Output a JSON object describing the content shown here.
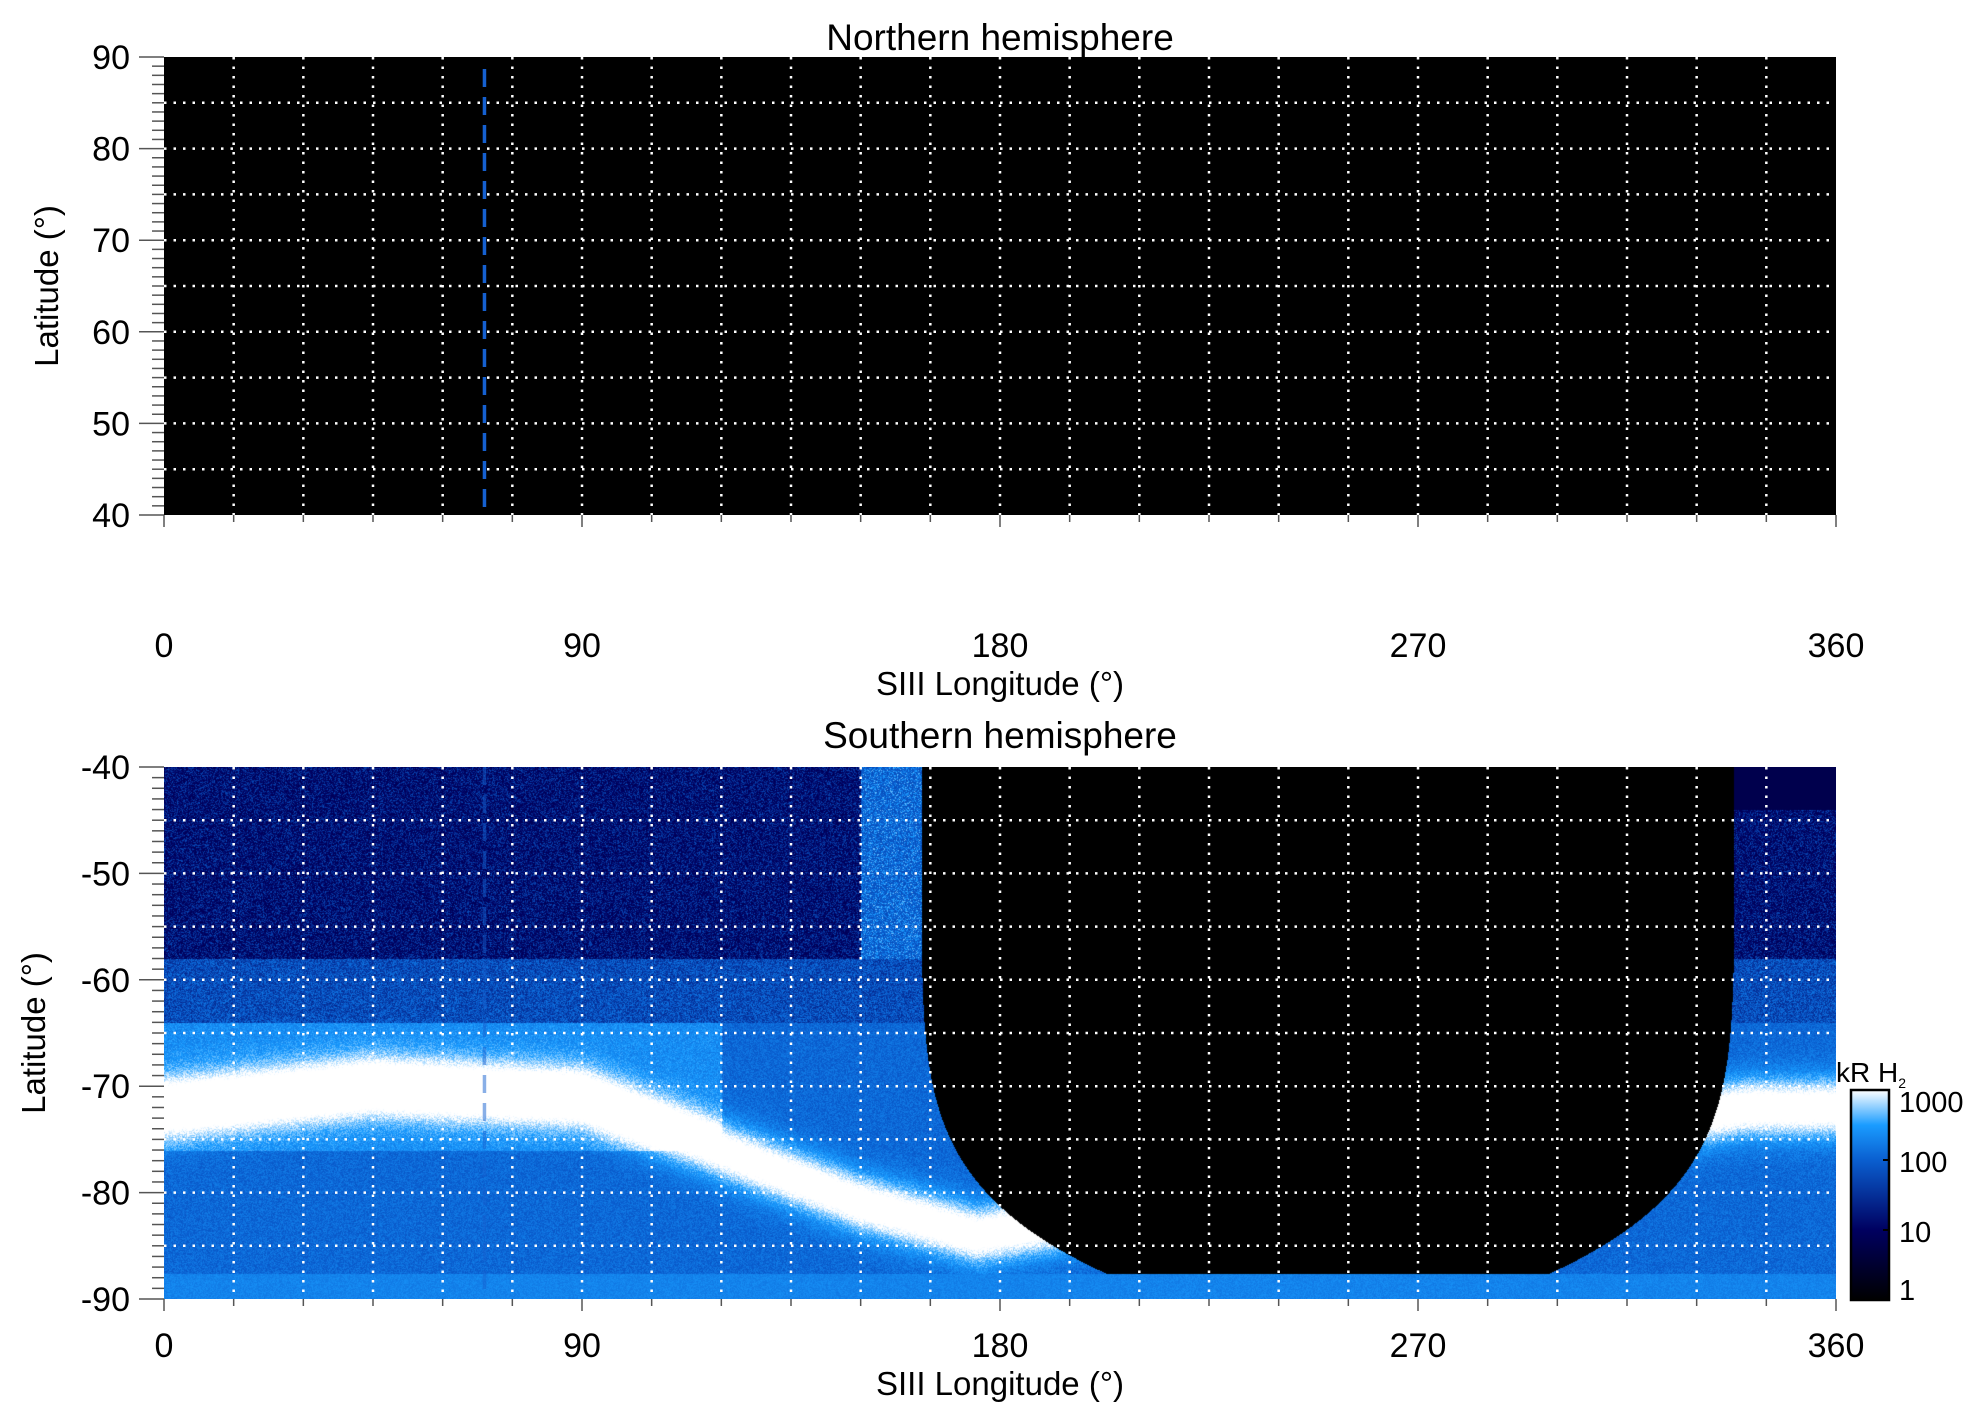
{
  "chart_data": [
    {
      "type": "heatmap",
      "title": "Northern hemisphere",
      "xlabel": "SIII Longitude (°)",
      "ylabel": "Latitude (°)",
      "xlim": [
        0,
        360
      ],
      "ylim": [
        40,
        90
      ],
      "xticks": [
        "0",
        "90",
        "180",
        "270",
        "360"
      ],
      "yticks": [
        "40",
        "50",
        "60",
        "70",
        "80",
        "90"
      ],
      "grid": {
        "on": true,
        "style": "dotted",
        "color": "#ffffff",
        "x_step": 15,
        "y_step": 5
      },
      "marker_line": {
        "longitude": 69,
        "style": "dashed",
        "color": "#1560d0"
      },
      "content": "no emission (all black)"
    },
    {
      "type": "heatmap",
      "title": "Southern hemisphere",
      "xlabel": "SIII Longitude (°)",
      "ylabel": "Latitude (°)",
      "xlim": [
        0,
        360
      ],
      "ylim": [
        -90,
        -40
      ],
      "xticks": [
        "0",
        "90",
        "180",
        "270",
        "360"
      ],
      "yticks": [
        "-40",
        "-50",
        "-60",
        "-70",
        "-80",
        "-90"
      ],
      "grid": {
        "on": true,
        "style": "dotted",
        "color": "#ffffff",
        "x_step": 15,
        "y_step": 5
      },
      "marker_line": {
        "longitude": 69,
        "style": "dashed",
        "color": "#1560d0"
      },
      "colorbar": {
        "label": "kR H",
        "label_subscript": "2",
        "scale": "log",
        "range": [
          1,
          1000
        ],
        "ticks": [
          "1",
          "10",
          "100",
          "1000"
        ],
        "colormap": [
          "#000000",
          "#000060",
          "#0a5fd0",
          "#1a9cff",
          "#ffffff"
        ]
      },
      "features": {
        "main_oval_latitude_by_longitude": [
          [
            0,
            -72
          ],
          [
            45,
            -70
          ],
          [
            90,
            -71
          ],
          [
            120,
            -76
          ],
          [
            150,
            -81
          ],
          [
            175,
            -84
          ],
          [
            340,
            -72
          ],
          [
            360,
            -72
          ]
        ],
        "unobserved_longitude_range_at_minus40": [
          163,
          338
        ]
      }
    }
  ]
}
